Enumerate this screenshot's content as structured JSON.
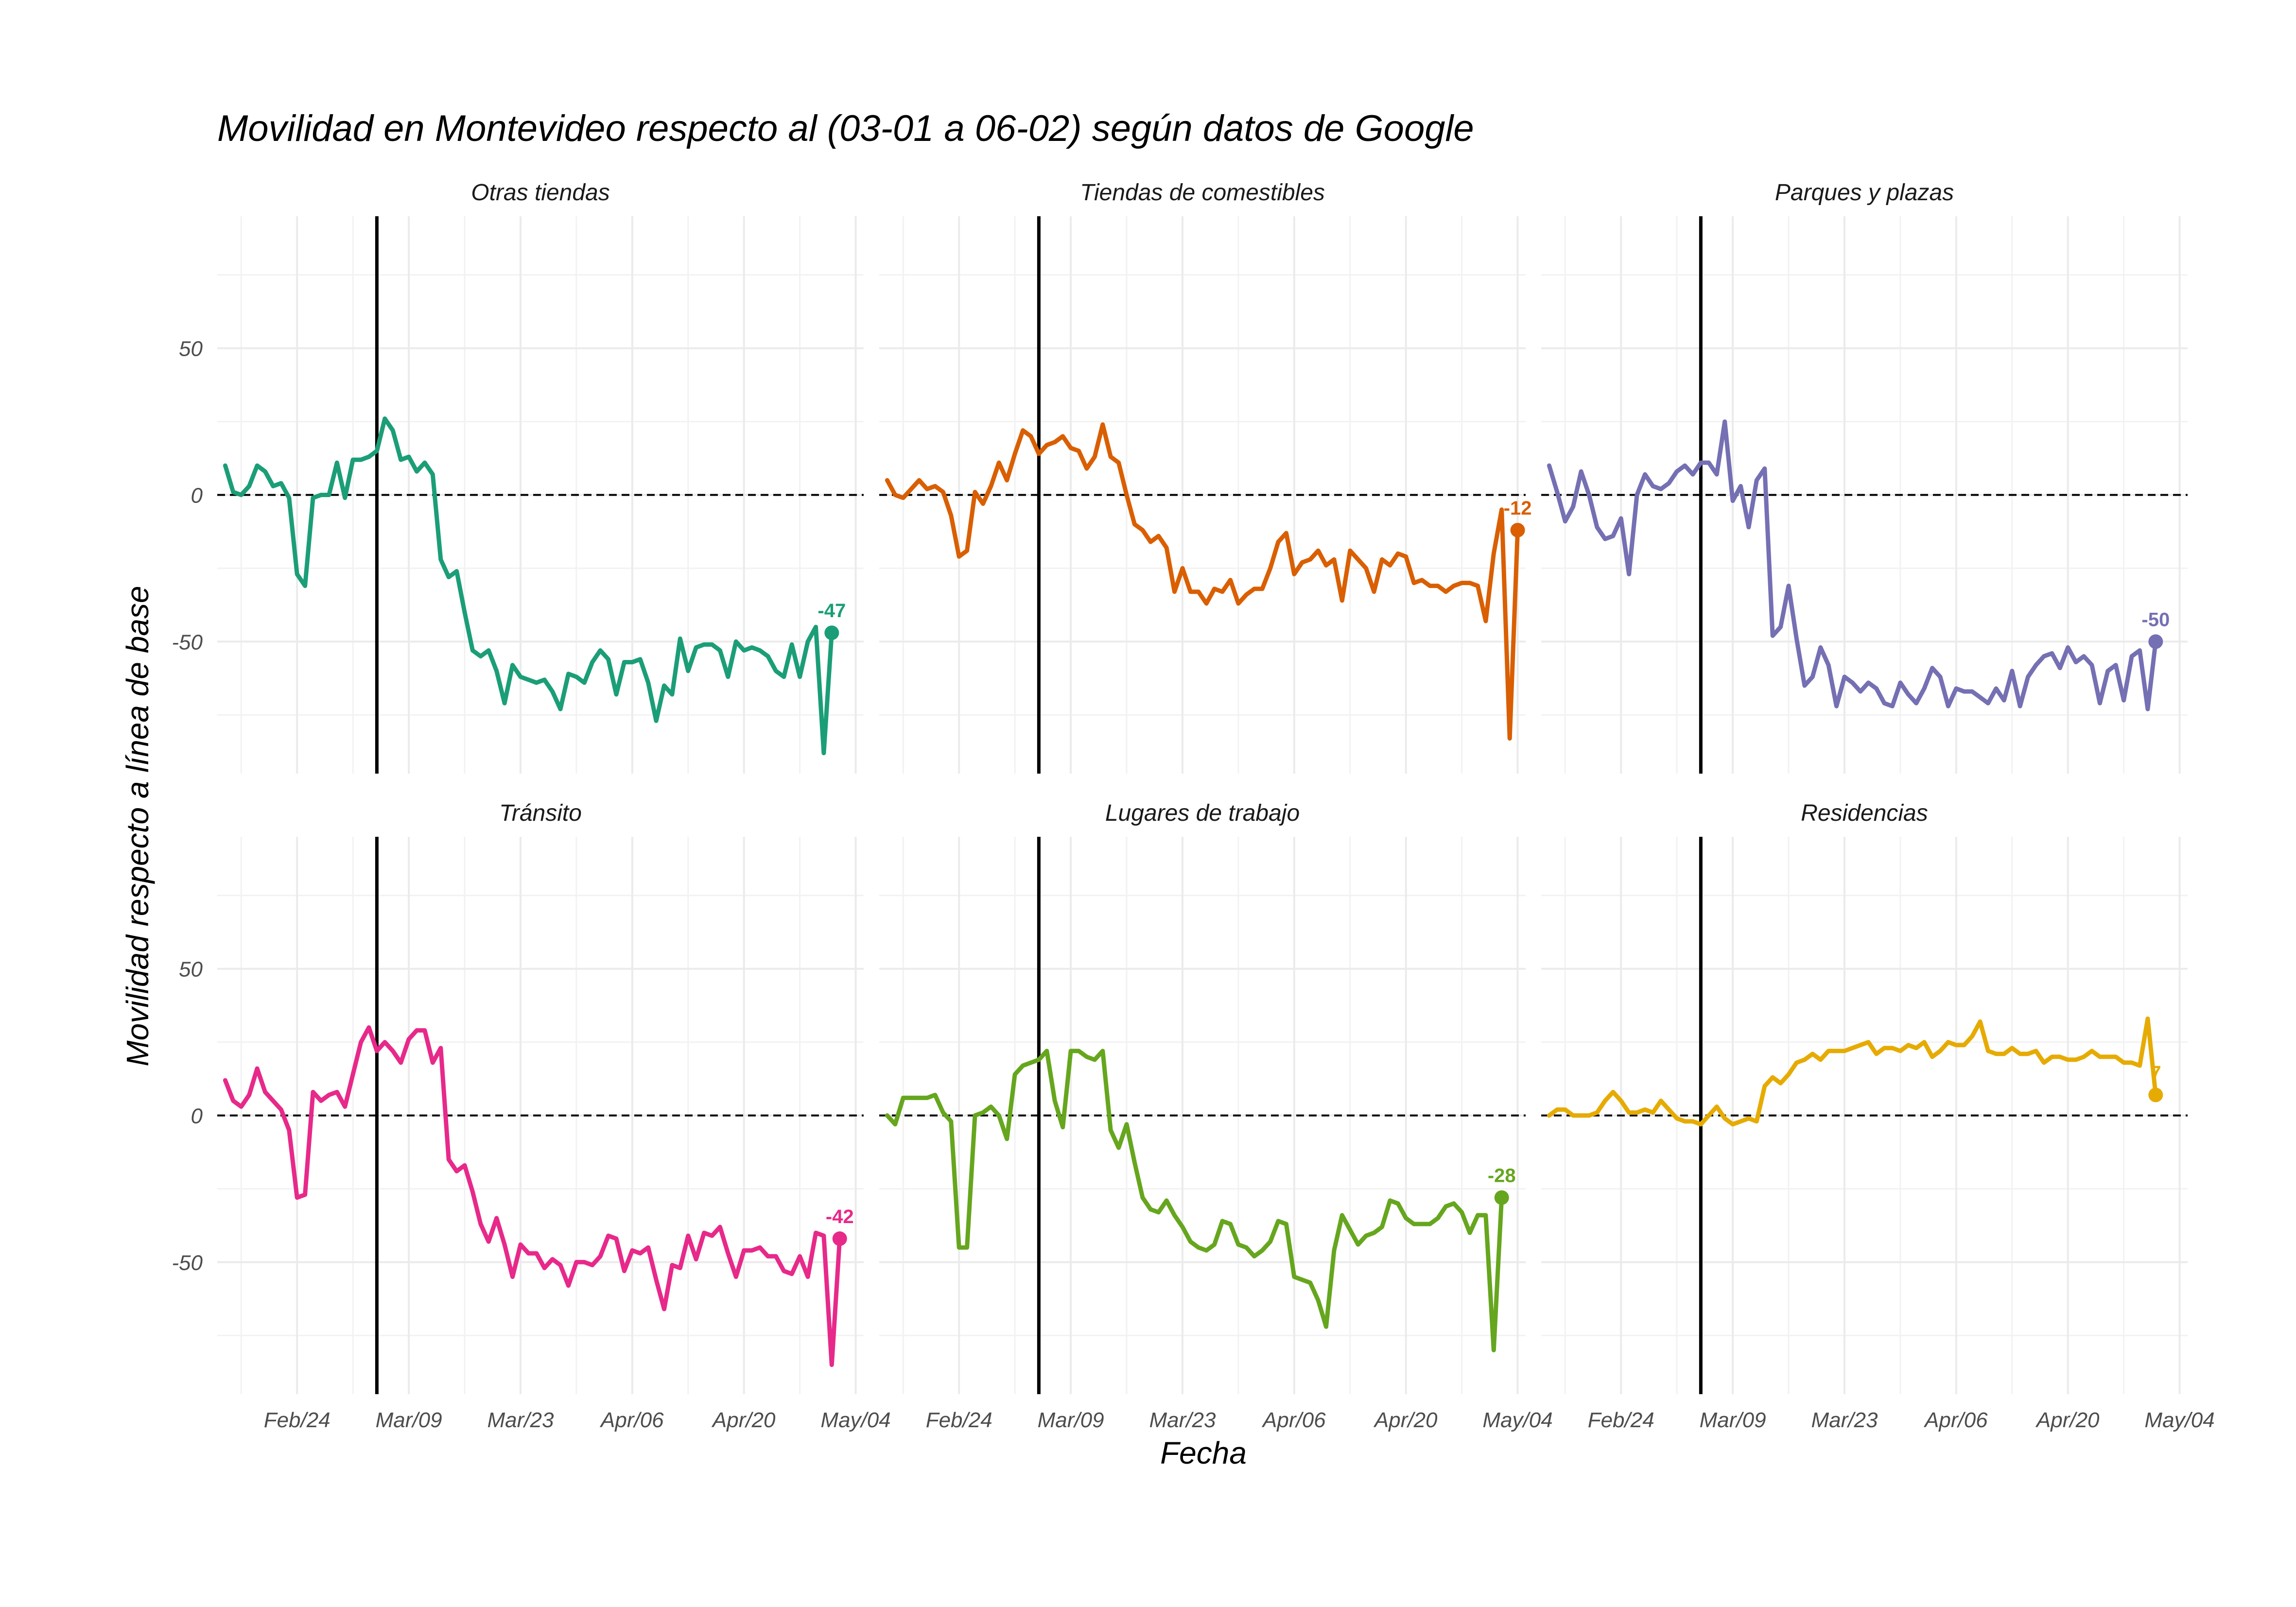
{
  "chart_data": {
    "type": "line",
    "title": "Movilidad en Montevideo respecto al (03-01 a 06-02) según datos de Google",
    "xlabel": "Fecha",
    "ylabel": "Movilidad respecto a línea de base",
    "x_start": "2020-02-15",
    "x_end": "2020-05-03",
    "xlim": [
      "2020-02-14",
      "2020-05-05"
    ],
    "ylim": [
      -95,
      95
    ],
    "yticks": [
      -50,
      0,
      50
    ],
    "ytick_labels": [
      "-50",
      "0",
      "50"
    ],
    "xticks": [
      "2020-02-24",
      "2020-03-09",
      "2020-03-23",
      "2020-04-06",
      "2020-04-20",
      "2020-05-04"
    ],
    "xtick_labels": [
      "Feb/24",
      "Mar/09",
      "Mar/23",
      "Apr/06",
      "Apr/20",
      "May/04"
    ],
    "vline": "2020-03-05",
    "hline": 0,
    "grid": true,
    "legend": "none",
    "panels": [
      {
        "name": "Otras tiendas",
        "color": "#1B9E77",
        "end_label": "-47",
        "values": [
          10,
          1,
          0,
          3,
          10,
          8,
          3,
          4,
          -1,
          -27,
          -31,
          -1,
          0,
          0,
          11,
          -1,
          12,
          12,
          13,
          15,
          26,
          22,
          12,
          13,
          8,
          11,
          7,
          -22,
          -28,
          -26,
          -40,
          -53,
          -55,
          -53,
          -60,
          -71,
          -58,
          -62,
          -63,
          -64,
          -63,
          -67,
          -73,
          -61,
          -62,
          -64,
          -57,
          -53,
          -56,
          -68,
          -57,
          -57,
          -56,
          -64,
          -77,
          -65,
          -68,
          -49,
          -60,
          -52,
          -51,
          -51,
          -53,
          -62,
          -50,
          -53,
          -52,
          -53,
          -55,
          -60,
          -62,
          -51,
          -62,
          -50,
          -45,
          -88,
          -47
        ]
      },
      {
        "name": "Tiendas de comestibles",
        "color": "#D95F02",
        "end_label": "-12",
        "values": [
          5,
          0,
          -1,
          2,
          5,
          2,
          3,
          1,
          -7,
          -21,
          -19,
          1,
          -3,
          3,
          11,
          5,
          14,
          22,
          20,
          14,
          17,
          18,
          20,
          16,
          15,
          9,
          13,
          24,
          13,
          11,
          0,
          -10,
          -12,
          -16,
          -14,
          -18,
          -33,
          -25,
          -33,
          -33,
          -37,
          -32,
          -33,
          -29,
          -37,
          -34,
          -32,
          -32,
          -25,
          -16,
          -13,
          -27,
          -23,
          -22,
          -19,
          -24,
          -22,
          -36,
          -19,
          -22,
          -25,
          -33,
          -22,
          -24,
          -20,
          -21,
          -30,
          -29,
          -31,
          -31,
          -33,
          -31,
          -30,
          -30,
          -31,
          -43,
          -20,
          -5,
          -83,
          -12
        ]
      },
      {
        "name": "Parques y plazas",
        "color": "#7570B3",
        "end_label": "-50",
        "values": [
          10,
          1,
          -9,
          -4,
          8,
          0,
          -11,
          -15,
          -14,
          -8,
          -27,
          0,
          7,
          3,
          2,
          4,
          8,
          10,
          7,
          11,
          11,
          7,
          25,
          -2,
          3,
          -11,
          5,
          9,
          -48,
          -45,
          -31,
          -49,
          -65,
          -62,
          -52,
          -58,
          -72,
          -62,
          -64,
          -67,
          -64,
          -66,
          -71,
          -72,
          -64,
          -68,
          -71,
          -66,
          -59,
          -62,
          -72,
          -66,
          -67,
          -67,
          -69,
          -71,
          -66,
          -70,
          -60,
          -72,
          -62,
          -58,
          -55,
          -54,
          -59,
          -52,
          -57,
          -55,
          -58,
          -71,
          -60,
          -58,
          -70,
          -55,
          -53,
          -73,
          -50
        ]
      },
      {
        "name": "Tránsito",
        "color": "#E7298A",
        "end_label": "-42",
        "values": [
          12,
          5,
          3,
          7,
          16,
          8,
          5,
          2,
          -5,
          -28,
          -27,
          8,
          5,
          7,
          8,
          3,
          14,
          25,
          30,
          22,
          25,
          22,
          18,
          26,
          29,
          29,
          18,
          23,
          -15,
          -19,
          -17,
          -26,
          -37,
          -43,
          -35,
          -44,
          -55,
          -44,
          -47,
          -47,
          -52,
          -49,
          -51,
          -58,
          -50,
          -50,
          -51,
          -48,
          -41,
          -42,
          -53,
          -46,
          -47,
          -45,
          -56,
          -66,
          -51,
          -52,
          -41,
          -49,
          -40,
          -41,
          -38,
          -47,
          -55,
          -46,
          -46,
          -45,
          -48,
          -48,
          -53,
          -54,
          -48,
          -55,
          -40,
          -41,
          -85,
          -42
        ]
      },
      {
        "name": "Lugares de trabajo",
        "color": "#66A61E",
        "end_label": "-28",
        "values": [
          0,
          -3,
          6,
          6,
          6,
          6,
          7,
          1,
          -2,
          -45,
          -45,
          0,
          1,
          3,
          0,
          -8,
          14,
          17,
          18,
          19,
          22,
          5,
          -4,
          22,
          22,
          20,
          19,
          22,
          -5,
          -11,
          -3,
          -16,
          -28,
          -32,
          -33,
          -29,
          -34,
          -38,
          -43,
          -45,
          -46,
          -44,
          -36,
          -37,
          -44,
          -45,
          -48,
          -46,
          -43,
          -36,
          -37,
          -55,
          -56,
          -57,
          -63,
          -72,
          -46,
          -34,
          -39,
          -44,
          -41,
          -40,
          -38,
          -29,
          -30,
          -35,
          -37,
          -37,
          -37,
          -35,
          -31,
          -30,
          -33,
          -40,
          -34,
          -34,
          -80,
          -28
        ]
      },
      {
        "name": "Residencias",
        "color": "#E6AB02",
        "end_label": "7",
        "values": [
          0,
          2,
          2,
          0,
          0,
          0,
          1,
          5,
          8,
          5,
          1,
          1,
          2,
          1,
          5,
          2,
          -1,
          -2,
          -2,
          -3,
          0,
          3,
          -1,
          -3,
          -2,
          -1,
          -2,
          10,
          13,
          11,
          14,
          18,
          19,
          21,
          19,
          22,
          22,
          22,
          23,
          24,
          25,
          21,
          23,
          23,
          22,
          24,
          23,
          25,
          20,
          22,
          25,
          24,
          24,
          27,
          32,
          22,
          21,
          21,
          23,
          21,
          21,
          22,
          18,
          20,
          20,
          19,
          19,
          20,
          22,
          20,
          20,
          20,
          18,
          18,
          17,
          33,
          7
        ]
      }
    ]
  }
}
